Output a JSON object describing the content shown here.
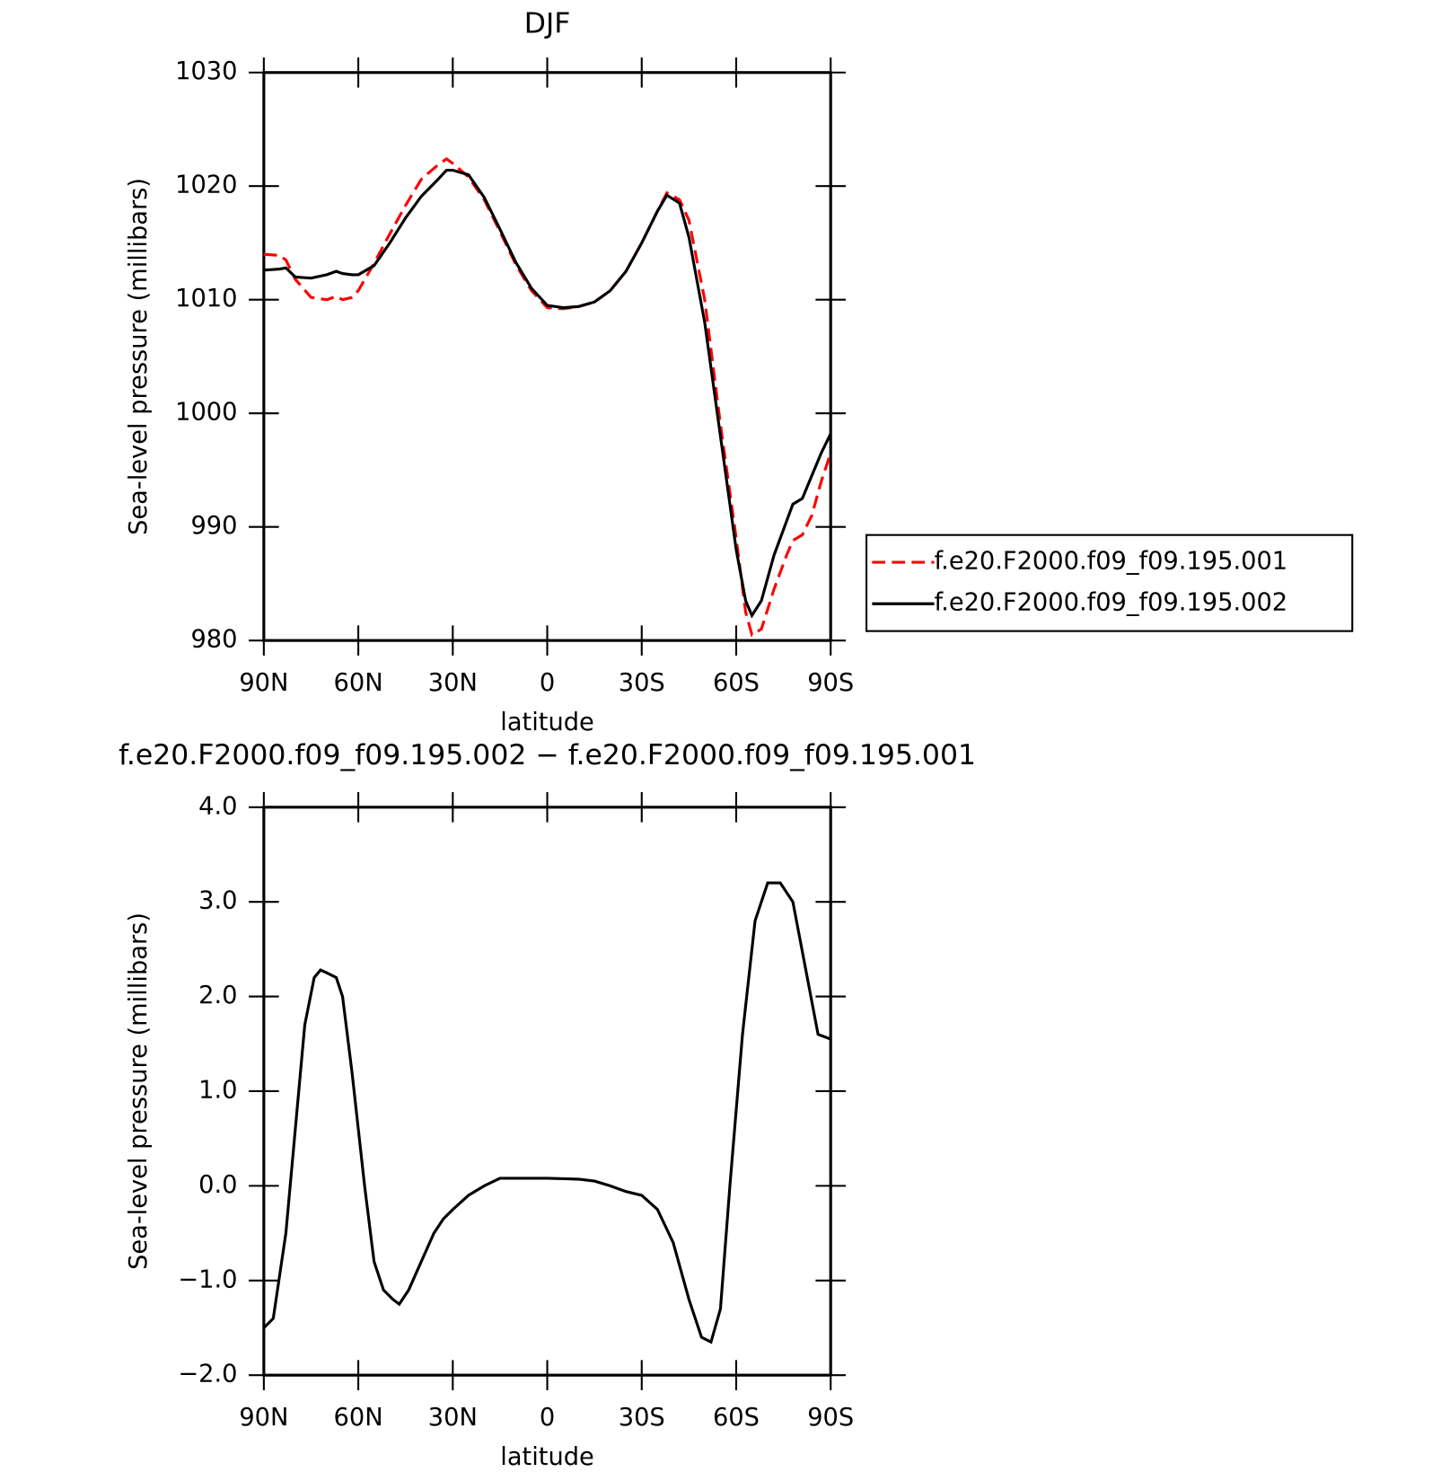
{
  "chart_data": [
    {
      "type": "line",
      "title": "DJF",
      "x": [
        90,
        85,
        83,
        80,
        75,
        70,
        67,
        65,
        62,
        60,
        55,
        50,
        45,
        40,
        35,
        32,
        30,
        25,
        20,
        15,
        10,
        5,
        0,
        -5,
        -10,
        -15,
        -20,
        -25,
        -30,
        -35,
        -38,
        -42,
        -45,
        -50,
        -55,
        -60,
        -63,
        -65,
        -68,
        -72,
        -76,
        -78,
        -81,
        -84,
        -87,
        -90
      ],
      "series": [
        {
          "name": "f.e20.F2000.f09_f09.195.001",
          "color": "#ff0000",
          "linestyle": "dashed",
          "values": [
            1014.0,
            1013.9,
            1013.5,
            1011.8,
            1010.2,
            1010.0,
            1010.3,
            1010.0,
            1010.2,
            1010.8,
            1013.2,
            1015.8,
            1018.3,
            1020.6,
            1021.8,
            1022.4,
            1022.0,
            1020.8,
            1018.8,
            1016.0,
            1013.1,
            1010.8,
            1009.3,
            1009.2,
            1009.4,
            1009.8,
            1010.8,
            1012.5,
            1015.0,
            1017.8,
            1019.4,
            1018.8,
            1017.0,
            1010.0,
            999.0,
            989.0,
            982.5,
            980.5,
            981.0,
            984.5,
            987.5,
            988.8,
            989.3,
            991.0,
            994.0,
            996.5
          ]
        },
        {
          "name": "f.e20.F2000.f09_f09.195.002",
          "color": "#000000",
          "linestyle": "solid",
          "values": [
            1012.6,
            1012.7,
            1012.8,
            1012.0,
            1011.9,
            1012.2,
            1012.5,
            1012.3,
            1012.2,
            1012.2,
            1013.0,
            1015.0,
            1017.2,
            1019.1,
            1020.5,
            1021.4,
            1021.4,
            1021.0,
            1019.0,
            1016.2,
            1013.3,
            1011.0,
            1009.5,
            1009.3,
            1009.4,
            1009.8,
            1010.8,
            1012.5,
            1015.0,
            1017.8,
            1019.2,
            1018.5,
            1015.5,
            1008.0,
            998.0,
            988.0,
            983.5,
            982.2,
            983.5,
            987.5,
            990.5,
            992.0,
            992.5,
            994.5,
            996.5,
            998.2
          ]
        }
      ],
      "xlim": [
        90,
        -90
      ],
      "xticks": [
        {
          "value": 90,
          "label": "90N"
        },
        {
          "value": 60,
          "label": "60N"
        },
        {
          "value": 30,
          "label": "30N"
        },
        0,
        {
          "value": -30,
          "label": "30S"
        },
        {
          "value": -60,
          "label": "60S"
        },
        {
          "value": -90,
          "label": "90S"
        }
      ],
      "ylim": [
        980,
        1030
      ],
      "yticks": [
        980,
        990,
        1000,
        1010,
        1020,
        1030
      ],
      "xlabel": "latitude",
      "ylabel": "Sea-level pressure (millibars)",
      "legend": "right"
    },
    {
      "type": "line",
      "title": "f.e20.F2000.f09_f09.195.002 − f.e20.F2000.f09_f09.195.001",
      "x": [
        90,
        87,
        83,
        80,
        77,
        74,
        72,
        70,
        67,
        65,
        62,
        58,
        55,
        52,
        49,
        47,
        44,
        40,
        36,
        33,
        30,
        25,
        20,
        15,
        10,
        0,
        -10,
        -15,
        -20,
        -25,
        -30,
        -35,
        -40,
        -45,
        -49,
        -52,
        -55,
        -58,
        -62,
        -66,
        -70,
        -74,
        -78,
        -82,
        -86,
        -90
      ],
      "series": [
        {
          "color": "#000000",
          "linestyle": "solid",
          "values": [
            -1.5,
            -1.4,
            -0.5,
            0.6,
            1.7,
            2.2,
            2.28,
            2.25,
            2.2,
            2.0,
            1.2,
            0.0,
            -0.8,
            -1.1,
            -1.2,
            -1.25,
            -1.1,
            -0.8,
            -0.5,
            -0.35,
            -0.25,
            -0.1,
            0.0,
            0.08,
            0.08,
            0.08,
            0.07,
            0.05,
            0.0,
            -0.06,
            -0.1,
            -0.25,
            -0.6,
            -1.2,
            -1.6,
            -1.65,
            -1.3,
            0.0,
            1.6,
            2.8,
            3.2,
            3.2,
            3.0,
            2.3,
            1.6,
            1.55
          ]
        }
      ],
      "xlim": [
        90,
        -90
      ],
      "xticks": [
        {
          "value": 90,
          "label": "90N"
        },
        {
          "value": 60,
          "label": "60N"
        },
        {
          "value": 30,
          "label": "30N"
        },
        0,
        {
          "value": -30,
          "label": "30S"
        },
        {
          "value": -60,
          "label": "60S"
        },
        {
          "value": -90,
          "label": "90S"
        }
      ],
      "ylim": [
        -2,
        4
      ],
      "yticks": [
        {
          "value": -2,
          "label": "−2.0"
        },
        {
          "value": -1,
          "label": "−1.0"
        },
        {
          "value": 0,
          "label": "0.0"
        },
        {
          "value": 1,
          "label": "1.0"
        },
        {
          "value": 2,
          "label": "2.0"
        },
        {
          "value": 3,
          "label": "3.0"
        },
        {
          "value": 4,
          "label": "4.0"
        }
      ],
      "xlabel": "latitude",
      "ylabel": "Sea-level pressure (millibars)"
    }
  ]
}
